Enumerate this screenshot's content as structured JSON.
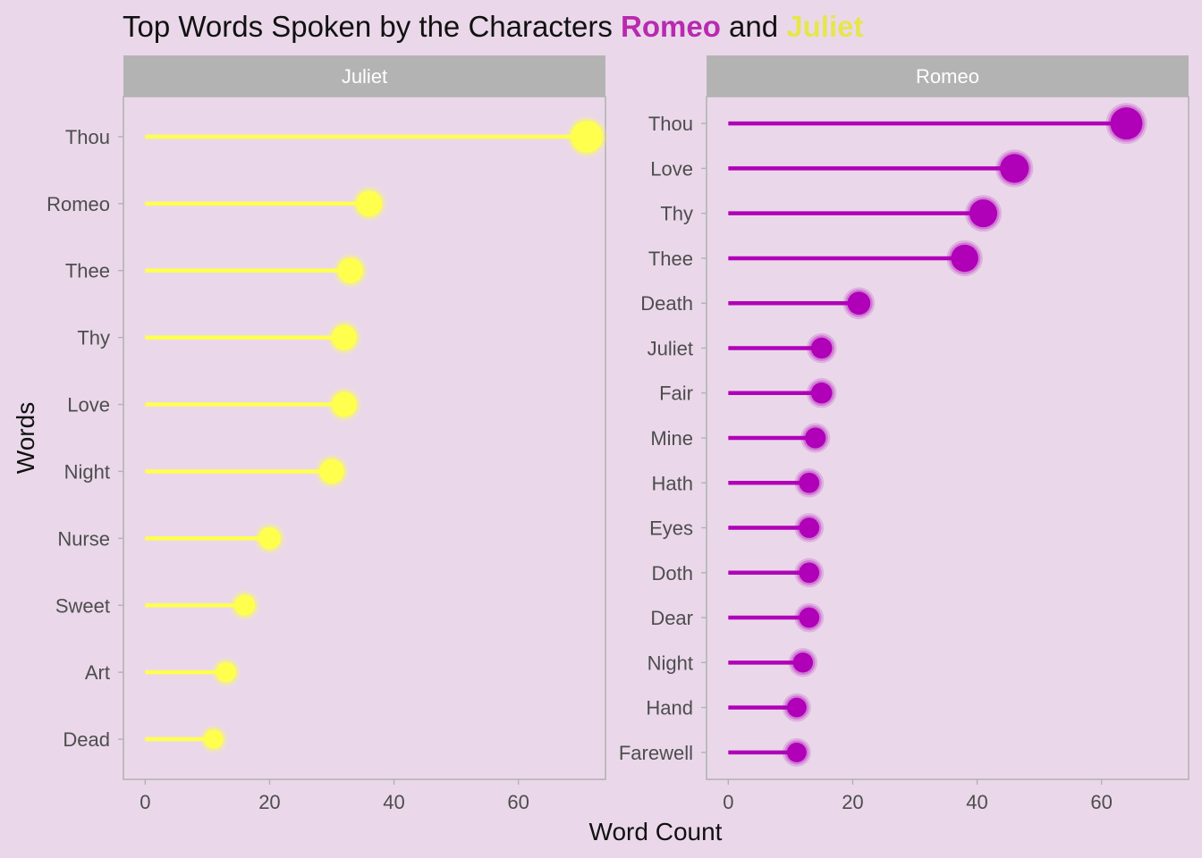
{
  "title": {
    "prefix": "Top Words Spoken by the Characters ",
    "romeo": "Romeo",
    "middle": " and ",
    "juliet": "Juliet"
  },
  "colors": {
    "background": "#ead8ea",
    "strip": "#b3b3b3",
    "juliet": "#ffff4d",
    "romeo": "#b000b8",
    "title_romeo": "#b82ab0",
    "title_juliet": "#e6e64d"
  },
  "chart_data": {
    "type": "lollipop",
    "xlabel": "Word Count",
    "ylabel": "Words",
    "panels": [
      {
        "name": "Juliet",
        "color_key": "juliet",
        "xlim": [
          -3.5,
          74
        ],
        "xticks": [
          0,
          20,
          40,
          60
        ],
        "categories": [
          "Thou",
          "Romeo",
          "Thee",
          "Thy",
          "Love",
          "Night",
          "Nurse",
          "Sweet",
          "Art",
          "Dead"
        ],
        "values": [
          71,
          36,
          33,
          32,
          32,
          30,
          20,
          16,
          13,
          11
        ]
      },
      {
        "name": "Romeo",
        "color_key": "romeo",
        "xlim": [
          -3.5,
          74
        ],
        "xticks": [
          0,
          20,
          40,
          60
        ],
        "categories": [
          "Thou",
          "Love",
          "Thy",
          "Thee",
          "Death",
          "Juliet",
          "Fair",
          "Mine",
          "Hath",
          "Eyes",
          "Doth",
          "Dear",
          "Night",
          "Hand",
          "Farewell"
        ],
        "values": [
          64,
          46,
          41,
          38,
          21,
          15,
          15,
          14,
          13,
          13,
          13,
          13,
          12,
          11,
          11
        ]
      }
    ]
  }
}
